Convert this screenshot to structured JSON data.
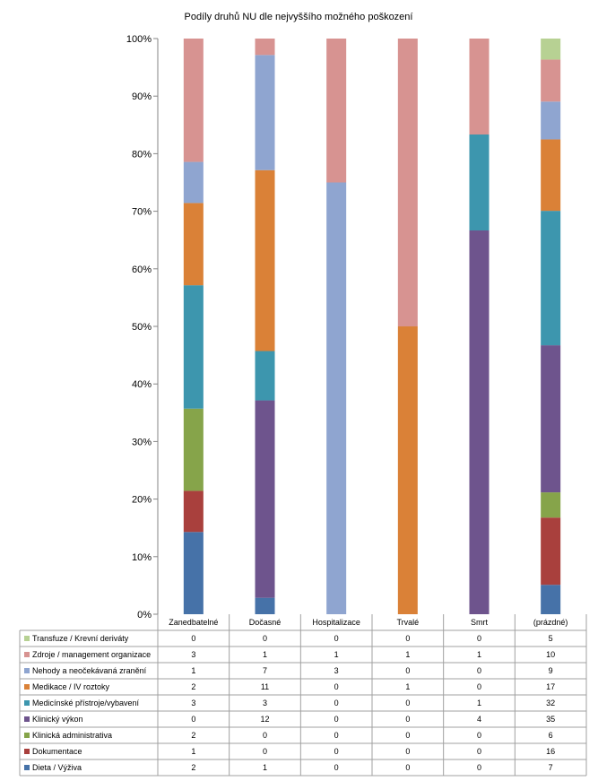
{
  "chart_data": {
    "type": "stacked-bar-100",
    "title": "Podíly druhů NU dle nejvyššího možného poškození",
    "categories": [
      "Zanedbatelné",
      "Dočasné",
      "Hospitalizace",
      "Trvalé",
      "Smrt",
      "(prázdné)"
    ],
    "y_ticks": [
      "0%",
      "10%",
      "20%",
      "30%",
      "40%",
      "50%",
      "60%",
      "70%",
      "80%",
      "90%",
      "100%"
    ],
    "ylim": [
      0,
      100
    ],
    "grid": false,
    "legend_position": "table-below",
    "series": [
      {
        "name": "Dieta / Výživa",
        "color": "#4672A8",
        "values": [
          2,
          1,
          0,
          0,
          0,
          7
        ]
      },
      {
        "name": "Dokumentace",
        "color": "#A9403D",
        "values": [
          1,
          0,
          0,
          0,
          0,
          16
        ]
      },
      {
        "name": "Klinická administrativa",
        "color": "#86A44A",
        "values": [
          2,
          0,
          0,
          0,
          0,
          6
        ]
      },
      {
        "name": "Klinický výkon",
        "color": "#6E548D",
        "values": [
          0,
          12,
          0,
          0,
          4,
          35
        ]
      },
      {
        "name": "Medicínské přístroje/vybavení",
        "color": "#3D96AE",
        "values": [
          3,
          3,
          0,
          0,
          1,
          32
        ]
      },
      {
        "name": "Medikace / IV roztoky",
        "color": "#DA8137",
        "values": [
          2,
          11,
          0,
          1,
          0,
          17
        ]
      },
      {
        "name": "Nehody a neočekávaná zranění",
        "color": "#8FA5D0",
        "values": [
          1,
          7,
          3,
          0,
          0,
          9
        ]
      },
      {
        "name": "Zdroje / management organizace",
        "color": "#D79391",
        "values": [
          3,
          1,
          1,
          1,
          1,
          10
        ]
      },
      {
        "name": "Transfuze / Krevní deriváty",
        "color": "#B7D193",
        "values": [
          0,
          0,
          0,
          0,
          0,
          5
        ]
      }
    ]
  }
}
